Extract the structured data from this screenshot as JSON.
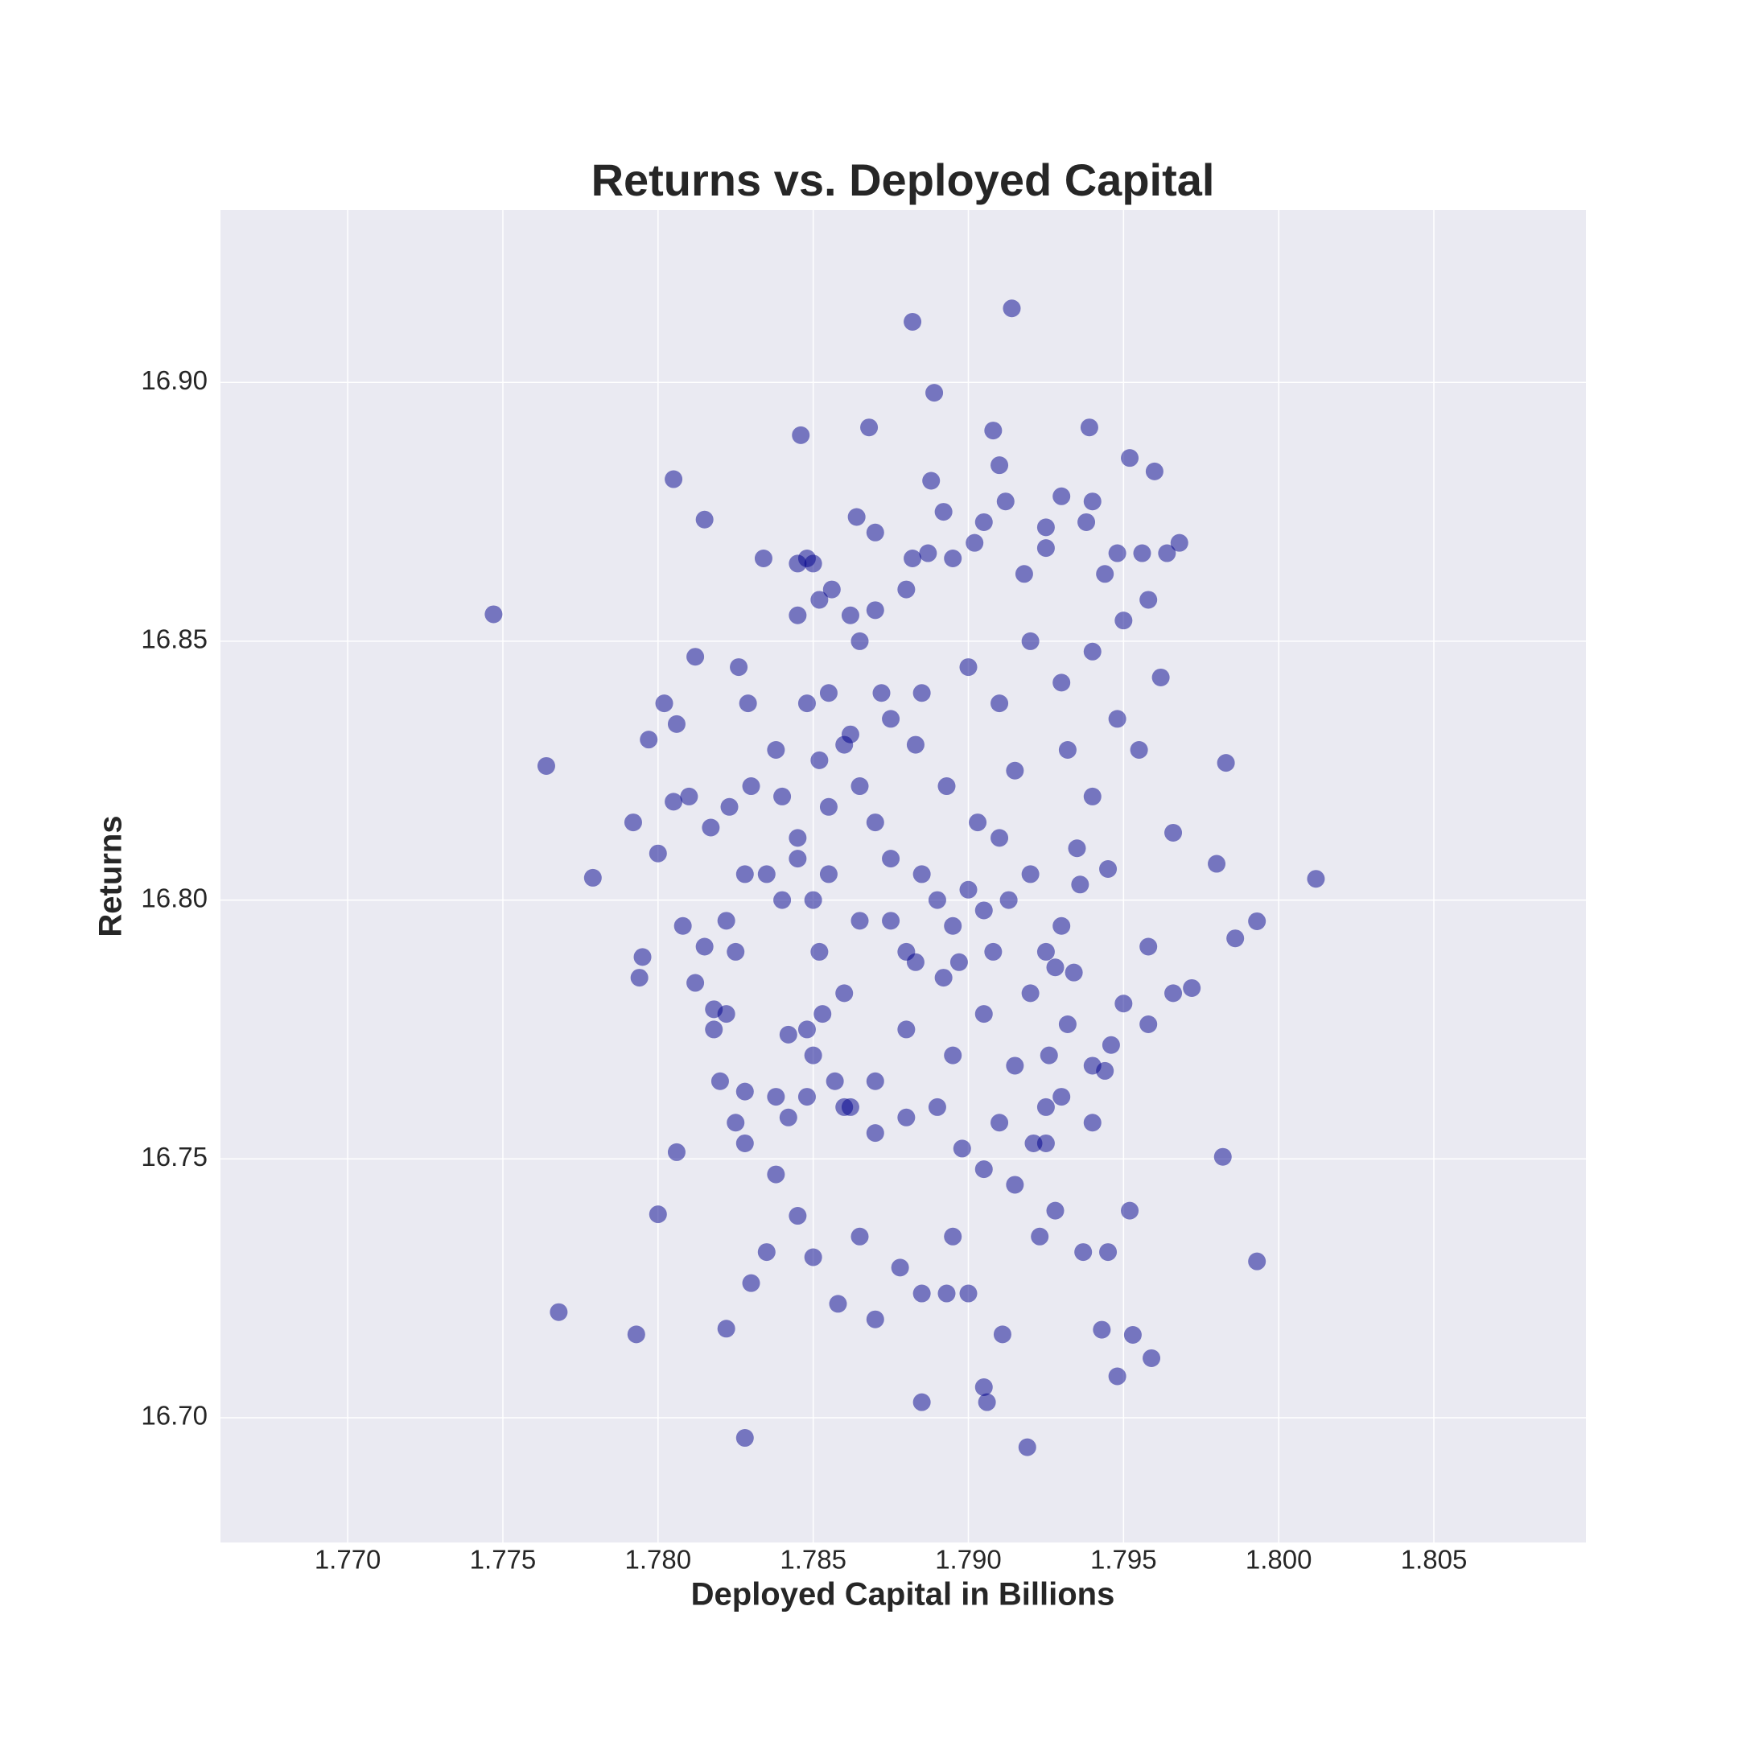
{
  "chart_data": {
    "type": "scatter",
    "title": "Returns vs. Deployed Capital",
    "x_label": "Deployed Capital in Billions",
    "y_label": "Returns",
    "color": "#00008b",
    "grid": true,
    "xlim": [
      1.7659,
      1.8099
    ],
    "ylim": [
      16.6759,
      16.9333
    ],
    "xticks": [
      {
        "value": 1.77,
        "label": "1.770"
      },
      {
        "value": 1.775,
        "label": "1.775"
      },
      {
        "value": 1.78,
        "label": "1.780"
      },
      {
        "value": 1.785,
        "label": "1.785"
      },
      {
        "value": 1.79,
        "label": "1.790"
      },
      {
        "value": 1.795,
        "label": "1.795"
      },
      {
        "value": 1.8,
        "label": "1.800"
      },
      {
        "value": 1.805,
        "label": "1.805"
      }
    ],
    "yticks": [
      {
        "value": 16.7,
        "label": "16.70"
      },
      16.75,
      {
        "value": 16.8,
        "label": "16.80"
      },
      16.85,
      {
        "value": 16.9,
        "label": "16.90"
      }
    ],
    "x": [
      1.7747,
      1.7764,
      1.7779,
      1.7768,
      1.7793,
      1.7828,
      1.7919,
      1.7882,
      1.7914,
      1.8012,
      1.7993,
      1.7993,
      1.7986,
      1.7982,
      1.7983,
      1.798,
      1.7805,
      1.7815,
      1.7889,
      1.7939,
      1.7846,
      1.7868,
      1.7908,
      1.7952,
      1.796,
      1.7906,
      1.7885,
      1.7905,
      1.7959,
      1.7948,
      1.7943,
      1.7911,
      1.7822,
      1.78,
      1.7806,
      1.7818,
      1.789,
      1.7895,
      1.7885,
      1.79,
      1.788,
      1.7875,
      1.7905,
      1.7892,
      1.787,
      1.791,
      1.7865,
      1.7915,
      1.786,
      1.7855,
      1.792,
      1.785,
      1.7845,
      1.7925,
      1.784,
      1.793,
      1.7835,
      1.7935,
      1.788,
      1.7895,
      1.787,
      1.7905,
      1.786,
      1.7915,
      1.785,
      1.7925,
      1.7885,
      1.79,
      1.7875,
      1.791,
      1.7865,
      1.792,
      1.7855,
      1.793,
      1.7845,
      1.794,
      1.788,
      1.7895,
      1.787,
      1.7905,
      1.785,
      1.7925,
      1.7888,
      1.791,
      1.794,
      1.7864,
      1.7958,
      1.7968,
      1.7962,
      1.7955,
      1.7966,
      1.7958,
      1.7966,
      1.7972,
      1.795,
      1.7958,
      1.7946,
      1.794,
      1.7952,
      1.7937,
      1.7945,
      1.7953,
      1.7928,
      1.7923,
      1.7915,
      1.7905,
      1.7895,
      1.7885,
      1.7893,
      1.79,
      1.7878,
      1.787,
      1.7858,
      1.7865,
      1.785,
      1.7845,
      1.7835,
      1.783,
      1.7838,
      1.7828,
      1.7825,
      1.782,
      1.7828,
      1.7822,
      1.7818,
      1.7812,
      1.7808,
      1.7815,
      1.7822,
      1.7825,
      1.7828,
      1.7817,
      1.7823,
      1.783,
      1.781,
      1.7805,
      1.7802,
      1.7806,
      1.7797,
      1.7792,
      1.78,
      1.7795,
      1.7794,
      1.7812,
      1.7826,
      1.7829,
      1.7834,
      1.7845,
      1.7848,
      1.7852,
      1.7856,
      1.7862,
      1.787,
      1.7882,
      1.7887,
      1.7892,
      1.7902,
      1.7912,
      1.7918,
      1.7925,
      1.793,
      1.7938,
      1.7944,
      1.7948,
      1.7956,
      1.7964,
      1.795,
      1.7948,
      1.794,
      1.7932,
      1.7945,
      1.7936,
      1.7928,
      1.7934,
      1.792,
      1.7932,
      1.7926,
      1.794,
      1.7944,
      1.793,
      1.7921,
      1.7925,
      1.791,
      1.7898,
      1.789,
      1.788,
      1.787,
      1.7862,
      1.7857,
      1.7848,
      1.7842,
      1.7838,
      1.7848,
      1.7853,
      1.786,
      1.7842,
      1.7852,
      1.784,
      1.7845,
      1.7855,
      1.7865,
      1.7875,
      1.7883,
      1.7897,
      1.7908,
      1.7913,
      1.7903,
      1.7893,
      1.7883,
      1.7872,
      1.7862,
      1.7852,
      1.7848,
      1.7838
    ],
    "values": [
      16.8552,
      16.8259,
      16.8043,
      16.7204,
      16.7161,
      16.6961,
      16.6943,
      16.9117,
      16.9143,
      16.8041,
      16.7302,
      16.7959,
      16.7926,
      16.7504,
      16.8265,
      16.807,
      16.8813,
      16.8735,
      16.898,
      16.8913,
      16.8898,
      16.8913,
      16.8907,
      16.8854,
      16.8828,
      16.703,
      16.703,
      16.7059,
      16.7115,
      16.708,
      16.717,
      16.7161,
      16.7172,
      16.7393,
      16.7513,
      16.7789,
      16.8,
      16.795,
      16.805,
      16.802,
      16.79,
      16.808,
      16.798,
      16.785,
      16.815,
      16.812,
      16.822,
      16.825,
      16.83,
      16.818,
      16.805,
      16.8,
      16.812,
      16.79,
      16.82,
      16.795,
      16.805,
      16.81,
      16.775,
      16.77,
      16.765,
      16.778,
      16.76,
      16.768,
      16.77,
      16.76,
      16.84,
      16.845,
      16.835,
      16.838,
      16.85,
      16.85,
      16.84,
      16.842,
      16.855,
      16.848,
      16.86,
      16.866,
      16.856,
      16.873,
      16.865,
      16.868,
      16.881,
      16.884,
      16.877,
      16.874,
      16.858,
      16.869,
      16.843,
      16.829,
      16.813,
      16.791,
      16.782,
      16.783,
      16.78,
      16.776,
      16.772,
      16.757,
      16.74,
      16.732,
      16.732,
      16.716,
      16.74,
      16.735,
      16.745,
      16.748,
      16.735,
      16.724,
      16.724,
      16.724,
      16.729,
      16.719,
      16.722,
      16.735,
      16.731,
      16.739,
      16.732,
      16.726,
      16.747,
      16.753,
      16.757,
      16.765,
      16.763,
      16.778,
      16.775,
      16.784,
      16.795,
      16.791,
      16.796,
      16.79,
      16.805,
      16.814,
      16.818,
      16.822,
      16.82,
      16.819,
      16.838,
      16.834,
      16.831,
      16.815,
      16.809,
      16.789,
      16.785,
      16.847,
      16.845,
      16.838,
      16.866,
      16.865,
      16.866,
      16.858,
      16.86,
      16.855,
      16.871,
      16.866,
      16.867,
      16.875,
      16.869,
      16.877,
      16.863,
      16.872,
      16.878,
      16.873,
      16.863,
      16.867,
      16.867,
      16.867,
      16.854,
      16.835,
      16.82,
      16.829,
      16.806,
      16.803,
      16.787,
      16.786,
      16.782,
      16.776,
      16.77,
      16.768,
      16.767,
      16.762,
      16.753,
      16.753,
      16.757,
      16.752,
      16.76,
      16.758,
      16.755,
      16.76,
      16.765,
      16.762,
      16.758,
      16.762,
      16.775,
      16.778,
      16.782,
      16.774,
      16.79,
      16.8,
      16.808,
      16.805,
      16.796,
      16.796,
      16.788,
      16.788,
      16.79,
      16.8,
      16.815,
      16.822,
      16.83,
      16.84,
      16.832,
      16.827,
      16.838,
      16.829
    ]
  }
}
